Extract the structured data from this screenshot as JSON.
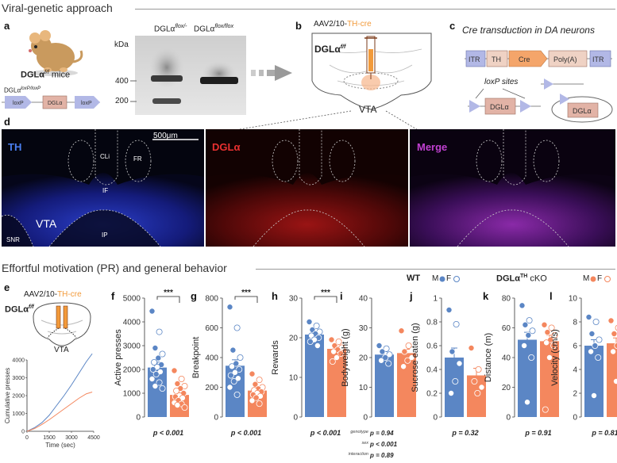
{
  "section1_title": "Viral-genetic approach",
  "section2_title": "Effortful motivation (PR) and general behavior",
  "panel_letters": {
    "a": "a",
    "b": "b",
    "c": "c",
    "d": "d",
    "e": "e",
    "f": "f",
    "g": "g",
    "h": "h",
    "i": "i",
    "j": "j",
    "k": "k",
    "l": "l"
  },
  "panel_a": {
    "mice_label_main": "DGLα",
    "mice_label_sup": "f/f",
    "mice_label_suffix": " mice",
    "construct_label_main": "DGLα",
    "construct_label_sup": "loxP/loxP",
    "construct_elements": [
      "loxP",
      "DGLα",
      "loxP"
    ]
  },
  "gel": {
    "kda_label": "kDa",
    "lane1_main": "DGLα",
    "lane1_sup": "flox/-",
    "lane2_main": "DGLα",
    "lane2_sup": "flox/flox",
    "markers": [
      "400",
      "200"
    ]
  },
  "panel_b": {
    "virus_prefix": "AAV2/10-",
    "virus_promoter": "TH",
    "virus_suffix": "-cre",
    "genotype_main": "DGLα",
    "genotype_sup": "f/f",
    "region": "VTA"
  },
  "panel_c": {
    "title": "Cre transduction in DA neurons",
    "cassette": [
      "ITR",
      "TH",
      "Cre",
      "Poly(A)",
      "ITR"
    ],
    "loxp_label": "loxP sites",
    "gene": "DGLα",
    "gene_excised": "DGLα"
  },
  "panel_d": {
    "channels": [
      "TH",
      "DGLα",
      "Merge"
    ],
    "channel_colors": [
      "#4a7ff0",
      "#e83030",
      "#c040d0"
    ],
    "scale_bar": "500μm",
    "regions": [
      "CLi",
      "FR",
      "IF",
      "VTA",
      "IP",
      "SNR"
    ]
  },
  "panel_e": {
    "virus_prefix": "AAV2/10-",
    "virus_promoter": "TH",
    "virus_suffix": "-cre",
    "genotype_main": "DGLα",
    "genotype_sup": "f/f",
    "region": "VTA"
  },
  "legend": {
    "wt_label": "WT",
    "ko_label_main": "DGLα",
    "ko_label_sup": "TH",
    "ko_label_suffix": " cKO",
    "male": "M",
    "female": "F"
  },
  "colors": {
    "wt": "#5b86c5",
    "ko": "#f4875e",
    "accent": "#f29a3a"
  },
  "chart_data": [
    {
      "panel": "e",
      "type": "line",
      "xlabel": "Time (sec)",
      "ylabel": "Cumulative presses",
      "xlim": [
        0,
        4500
      ],
      "ylim": [
        0,
        4000
      ],
      "xticks": [
        0,
        1500,
        3000,
        4500
      ],
      "yticks": [
        0,
        1000,
        2000,
        3000,
        4000
      ],
      "series": [
        {
          "color_key": "wt",
          "x": [
            0,
            500,
            1000,
            1500,
            2000,
            2500,
            3000,
            3500,
            4000,
            4400
          ],
          "y": [
            0,
            200,
            480,
            900,
            1450,
            2000,
            2600,
            3250,
            3900,
            4350
          ]
        },
        {
          "color_key": "ko",
          "x": [
            0,
            500,
            1000,
            1500,
            2000,
            2500,
            3000,
            3500,
            4000,
            4400
          ],
          "y": [
            0,
            150,
            380,
            650,
            950,
            1250,
            1550,
            1850,
            2100,
            2200
          ]
        }
      ]
    },
    {
      "panel": "f",
      "type": "bar",
      "ylabel": "Active presses",
      "ylim": [
        0,
        5000
      ],
      "yticks": [
        0,
        1000,
        2000,
        3000,
        4000,
        5000
      ],
      "values": [
        2080,
        930
      ],
      "errors": [
        230,
        90
      ],
      "points": [
        [
          4450,
          3580,
          2900,
          2650,
          2480,
          2300,
          2200,
          2100,
          2000,
          1900,
          1800,
          1600,
          1450,
          1300,
          1200
        ],
        [
          1950,
          1600,
          1400,
          1300,
          1200,
          1100,
          1000,
          900,
          850,
          800,
          700,
          600,
          550,
          500,
          400
        ]
      ],
      "significance": "***",
      "pvalue": "p < 0.001"
    },
    {
      "panel": "g",
      "type": "bar",
      "ylabel": "Breakpoint",
      "ylim": [
        0,
        800
      ],
      "yticks": [
        0,
        200,
        400,
        600,
        800
      ],
      "values": [
        345,
        178
      ],
      "errors": [
        40,
        15
      ],
      "points": [
        [
          740,
          600,
          450,
          400,
          360,
          340,
          320,
          300,
          280,
          260,
          240,
          200,
          150
        ],
        [
          290,
          250,
          220,
          200,
          190,
          180,
          170,
          160,
          150,
          140,
          130,
          110,
          90
        ]
      ],
      "significance": "***",
      "pvalue": "p < 0.001"
    },
    {
      "panel": "h",
      "type": "bar",
      "ylabel": "Rewards",
      "ylim": [
        0,
        30
      ],
      "yticks": [
        0,
        10,
        20,
        30
      ],
      "values": [
        20.8,
        17.2
      ],
      "errors": [
        0.7,
        0.6
      ],
      "points": [
        [
          24,
          23,
          22,
          21.5,
          21,
          20.5,
          20,
          19.5,
          19,
          18
        ],
        [
          19.5,
          19,
          18,
          17.5,
          17,
          16.5,
          16,
          15,
          14
        ]
      ],
      "significance": "***",
      "pvalue": "p < 0.001"
    },
    {
      "panel": "i",
      "type": "bar",
      "ylabel": "Bodyweight (g)",
      "ylim": [
        0,
        40
      ],
      "yticks": [
        0,
        10,
        20,
        30,
        40
      ],
      "values": [
        21,
        21.5
      ],
      "errors": [
        1,
        1.3
      ],
      "points": [
        [
          24,
          23,
          22,
          21,
          20,
          19,
          18
        ],
        [
          29,
          24,
          22,
          20,
          19,
          17
        ]
      ],
      "stats": [
        {
          "label": "genotype",
          "value": "p = 0.94"
        },
        {
          "label": "sex",
          "value": "p < 0.001"
        },
        {
          "label": "interaction",
          "value": "p = 0.89"
        }
      ]
    },
    {
      "panel": "j",
      "type": "bar",
      "ylabel": "Sucrose eaten (g)",
      "ylim": [
        0,
        1.0
      ],
      "yticks": [
        0,
        0.2,
        0.4,
        0.6,
        0.8,
        1.0
      ],
      "values": [
        0.5,
        0.35
      ],
      "errors": [
        0.08,
        0.06
      ],
      "points": [
        [
          0.9,
          0.78,
          0.55,
          0.45,
          0.3,
          0.2
        ],
        [
          0.58,
          0.4,
          0.3,
          0.25,
          0.2
        ]
      ],
      "pvalue": "p = 0.32"
    },
    {
      "panel": "k",
      "type": "bar",
      "ylabel": "Distance (m)",
      "ylim": [
        0,
        80
      ],
      "yticks": [
        0,
        20,
        40,
        60,
        80
      ],
      "values": [
        52,
        51
      ],
      "errors": [
        5,
        4
      ],
      "points": [
        [
          75,
          65,
          62,
          58,
          55,
          48,
          40,
          10
        ],
        [
          62,
          60,
          57,
          55,
          52,
          50,
          48,
          40,
          5
        ]
      ],
      "pvalue": "p = 0.91"
    },
    {
      "panel": "l",
      "type": "bar",
      "ylabel": "Velocity (cm/s)",
      "ylim": [
        0,
        10
      ],
      "yticks": [
        0,
        2,
        4,
        6,
        8,
        10
      ],
      "values": [
        6.0,
        6.2
      ],
      "errors": [
        0.5,
        0.45
      ],
      "points": [
        [
          8.4,
          8.0,
          7.0,
          6.5,
          6.0,
          5.5,
          5.0,
          1.8
        ],
        [
          8.1,
          7.5,
          7.0,
          6.5,
          6.0,
          5.5,
          5.0,
          3.0
        ]
      ],
      "pvalue": "p = 0.81"
    }
  ]
}
